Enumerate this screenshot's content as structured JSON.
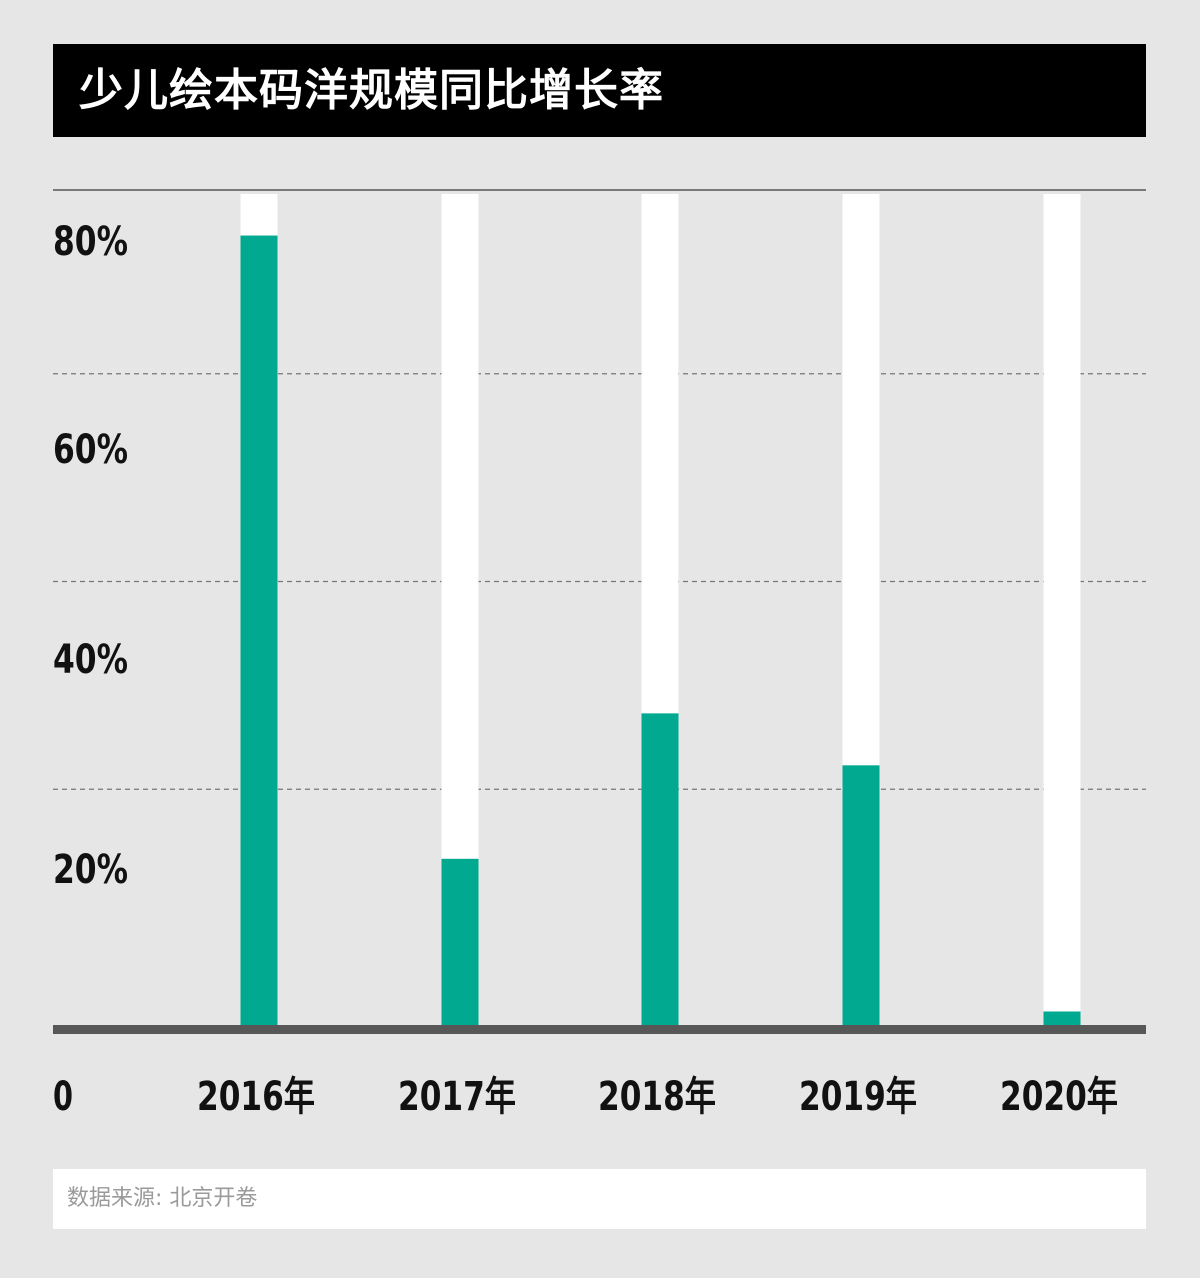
{
  "title": "少儿绘本码洋规模同比增长率",
  "source": "数据来源: 北京开卷",
  "colors": {
    "bar": "#00a98f",
    "track": "#ffffff",
    "background": "#e6e6e6",
    "baseline": "#575757",
    "grid": "#777777"
  },
  "chart_data": {
    "type": "bar",
    "categories": [
      "2016年",
      "2017年",
      "2018年",
      "2019年",
      "2020年"
    ],
    "values": [
      76,
      16,
      30,
      25,
      1.3
    ],
    "ylim": [
      0,
      80
    ],
    "yticks": [
      {
        "value": 0,
        "label": "0"
      },
      {
        "value": 20,
        "label": "20%"
      },
      {
        "value": 40,
        "label": "40%"
      },
      {
        "value": 60,
        "label": "60%"
      },
      {
        "value": 80,
        "label": "80%"
      }
    ],
    "grid": true,
    "title": "少儿绘本码洋规模同比增长率",
    "xlabel": "",
    "ylabel": ""
  }
}
